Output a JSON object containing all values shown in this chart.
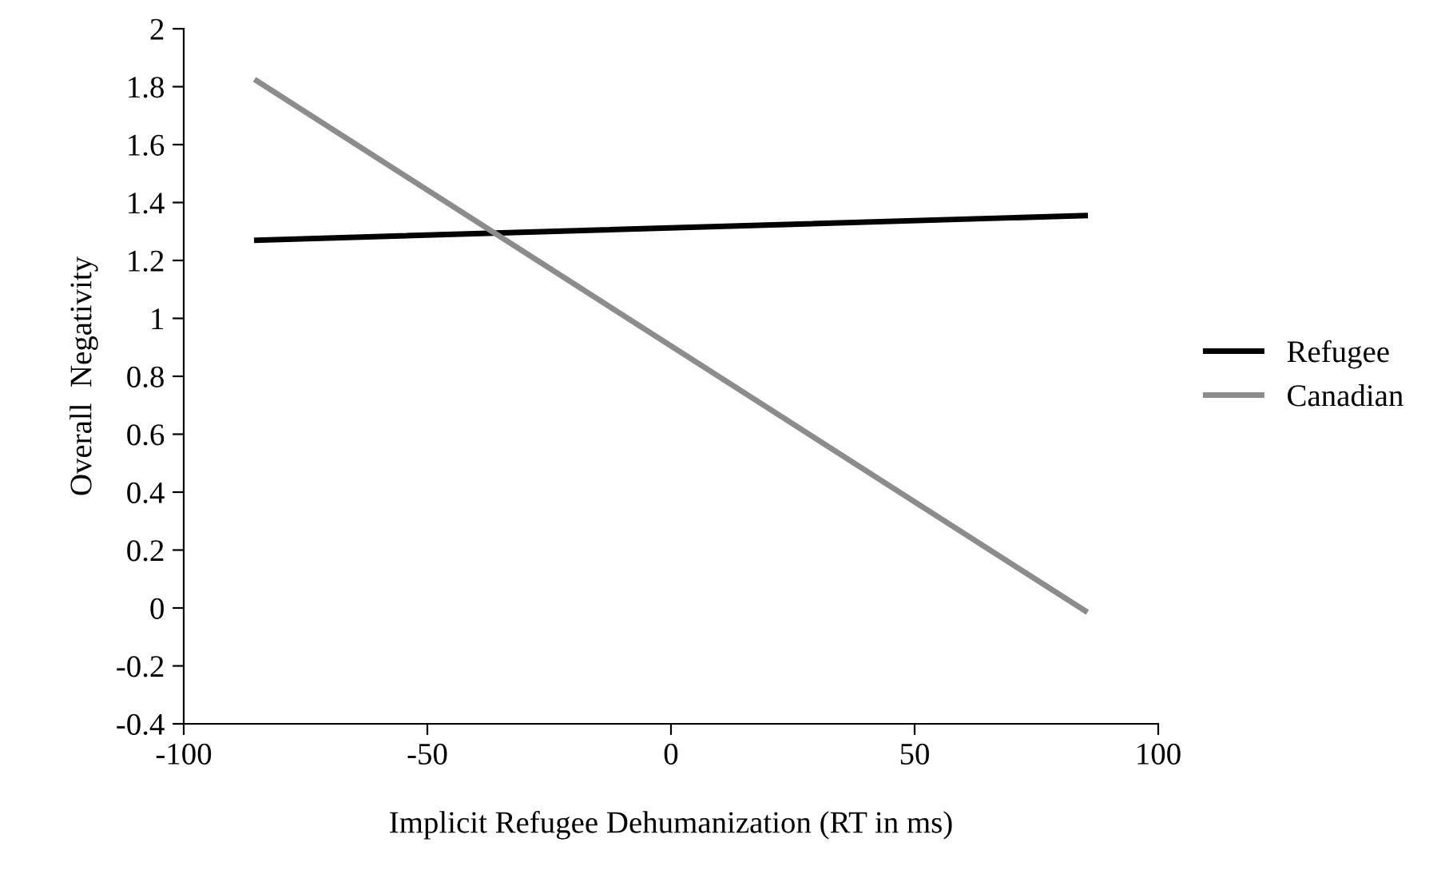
{
  "chart_data": {
    "type": "line",
    "xlabel": "Implicit Refugee Dehumanization (RT in ms)",
    "ylabel": "Overall  Negativity",
    "series": [
      {
        "name": "Refugee",
        "color": "#000000",
        "values": [
          1.27,
          1.355
        ]
      },
      {
        "name": "Canadian",
        "color": "#8c8c8c",
        "values": [
          1.82,
          -0.01
        ]
      }
    ],
    "x": [
      -85,
      85
    ],
    "xlim": [
      -100,
      100
    ],
    "xticks": [
      -100,
      -50,
      0,
      50,
      100
    ],
    "ylim": [
      -0.4,
      2
    ],
    "yticks": [
      -0.4,
      -0.2,
      0,
      0.2,
      0.4,
      0.6,
      0.8,
      1,
      1.2,
      1.4,
      1.6,
      1.8,
      2
    ],
    "grid": false,
    "legend": "right",
    "marker": "none",
    "line_style": "solid"
  }
}
